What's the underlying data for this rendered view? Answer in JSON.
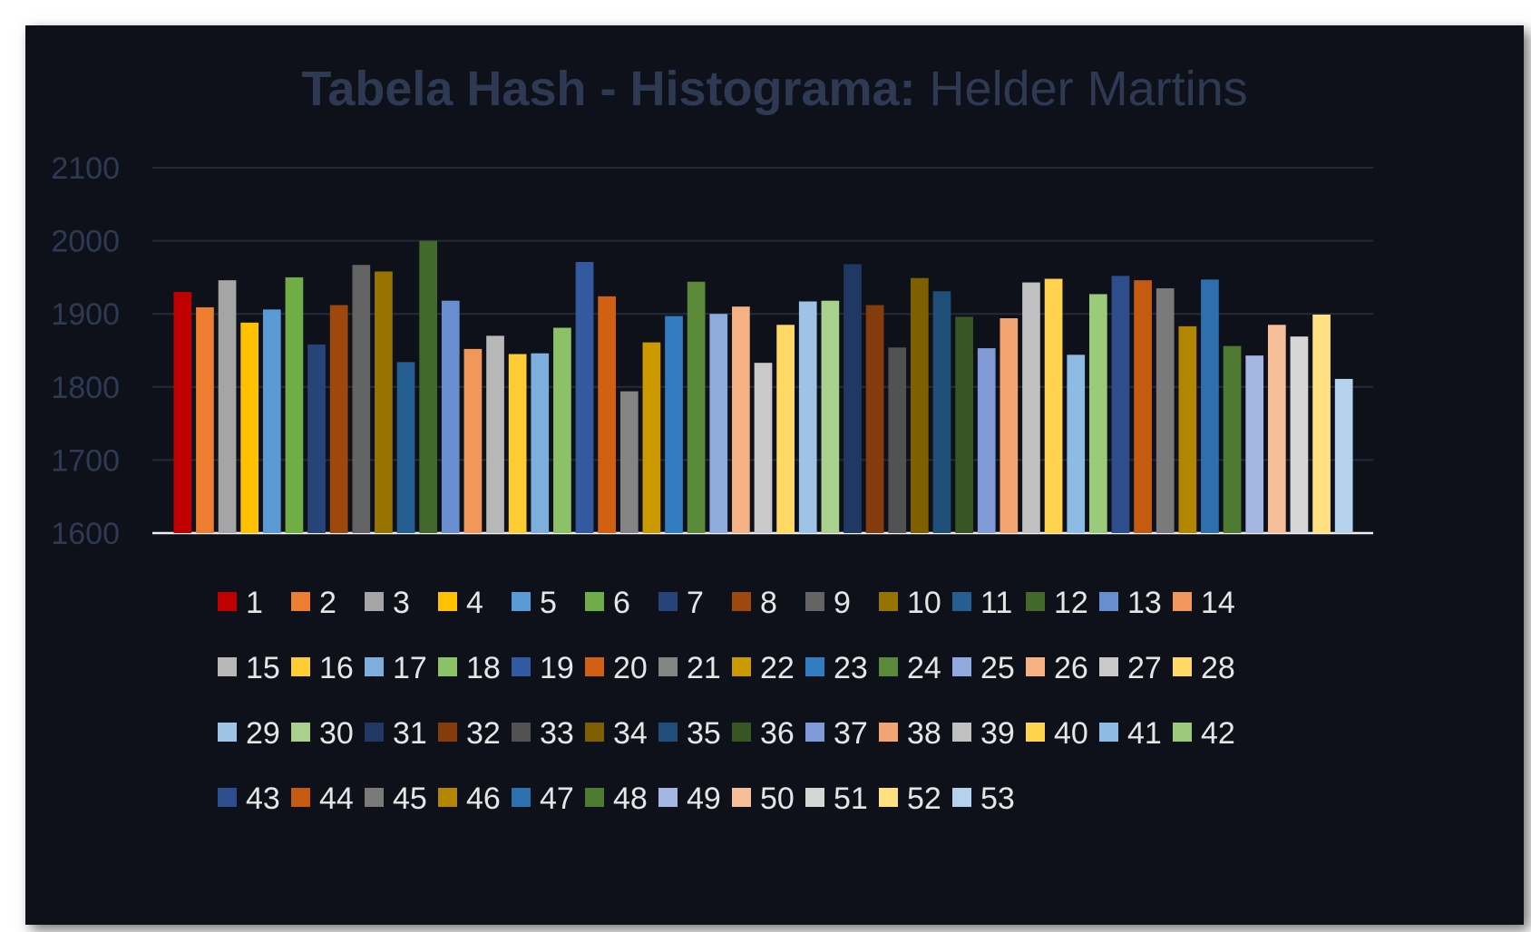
{
  "chart_data": {
    "type": "bar",
    "title_bold": "Tabela Hash - Histograma:",
    "title_normal": " Helder Martins",
    "xlabel": "",
    "ylabel": "",
    "ylim": [
      1600,
      2100
    ],
    "yticks": [
      1600,
      1700,
      1800,
      1900,
      2000,
      2100
    ],
    "grid": true,
    "legend_position": "bottom",
    "series": [
      {
        "name": "1",
        "value": 1930,
        "color": "#c00000"
      },
      {
        "name": "2",
        "value": 1909,
        "color": "#ed7d31"
      },
      {
        "name": "3",
        "value": 1946,
        "color": "#a5a5a5"
      },
      {
        "name": "4",
        "value": 1888,
        "color": "#ffc000"
      },
      {
        "name": "5",
        "value": 1906,
        "color": "#5b9bd5"
      },
      {
        "name": "6",
        "value": 1950,
        "color": "#70ad47"
      },
      {
        "name": "7",
        "value": 1858,
        "color": "#264478"
      },
      {
        "name": "8",
        "value": 1912,
        "color": "#9e480e"
      },
      {
        "name": "9",
        "value": 1967,
        "color": "#636363"
      },
      {
        "name": "10",
        "value": 1958,
        "color": "#997300"
      },
      {
        "name": "11",
        "value": 1834,
        "color": "#255e91"
      },
      {
        "name": "12",
        "value": 2000,
        "color": "#43682b"
      },
      {
        "name": "13",
        "value": 1918,
        "color": "#698ed0"
      },
      {
        "name": "14",
        "value": 1852,
        "color": "#f1975a"
      },
      {
        "name": "15",
        "value": 1870,
        "color": "#b7b7b7"
      },
      {
        "name": "16",
        "value": 1845,
        "color": "#ffcd33"
      },
      {
        "name": "17",
        "value": 1846,
        "color": "#7cafdd"
      },
      {
        "name": "18",
        "value": 1881,
        "color": "#8cc168"
      },
      {
        "name": "19",
        "value": 1971,
        "color": "#335aa1"
      },
      {
        "name": "20",
        "value": 1924,
        "color": "#d26012"
      },
      {
        "name": "21",
        "value": 1794,
        "color": "#848484"
      },
      {
        "name": "22",
        "value": 1861,
        "color": "#cc9a00"
      },
      {
        "name": "23",
        "value": 1897,
        "color": "#327dc2"
      },
      {
        "name": "24",
        "value": 1944,
        "color": "#5a8a39"
      },
      {
        "name": "25",
        "value": 1900,
        "color": "#8faadc"
      },
      {
        "name": "26",
        "value": 1910,
        "color": "#f4b183"
      },
      {
        "name": "27",
        "value": 1833,
        "color": "#c9c9c9"
      },
      {
        "name": "28",
        "value": 1885,
        "color": "#ffd966"
      },
      {
        "name": "29",
        "value": 1917,
        "color": "#9dc3e6"
      },
      {
        "name": "30",
        "value": 1918,
        "color": "#a9d18e"
      },
      {
        "name": "31",
        "value": 1968,
        "color": "#1f3864"
      },
      {
        "name": "32",
        "value": 1912,
        "color": "#843c0c"
      },
      {
        "name": "33",
        "value": 1854,
        "color": "#525252"
      },
      {
        "name": "34",
        "value": 1949,
        "color": "#7f6000"
      },
      {
        "name": "35",
        "value": 1931,
        "color": "#1f4e79"
      },
      {
        "name": "36",
        "value": 1896,
        "color": "#375623"
      },
      {
        "name": "37",
        "value": 1853,
        "color": "#7f9ad6"
      },
      {
        "name": "38",
        "value": 1894,
        "color": "#f4a470"
      },
      {
        "name": "39",
        "value": 1943,
        "color": "#c0c0c0"
      },
      {
        "name": "40",
        "value": 1948,
        "color": "#ffd34d"
      },
      {
        "name": "41",
        "value": 1844,
        "color": "#8dbbe3"
      },
      {
        "name": "42",
        "value": 1927,
        "color": "#9bca7b"
      },
      {
        "name": "43",
        "value": 1952,
        "color": "#2e4d8c"
      },
      {
        "name": "44",
        "value": 1946,
        "color": "#c55a11"
      },
      {
        "name": "45",
        "value": 1935,
        "color": "#7a7a7a"
      },
      {
        "name": "46",
        "value": 1883,
        "color": "#b38600"
      },
      {
        "name": "47",
        "value": 1947,
        "color": "#2e6fad"
      },
      {
        "name": "48",
        "value": 1856,
        "color": "#4e7a32"
      },
      {
        "name": "49",
        "value": 1843,
        "color": "#a4b7e3"
      },
      {
        "name": "50",
        "value": 1885,
        "color": "#f6bf9a"
      },
      {
        "name": "51",
        "value": 1869,
        "color": "#d6d6d6"
      },
      {
        "name": "52",
        "value": 1899,
        "color": "#ffe080"
      },
      {
        "name": "53",
        "value": 1811,
        "color": "#b4d2ee"
      }
    ]
  }
}
